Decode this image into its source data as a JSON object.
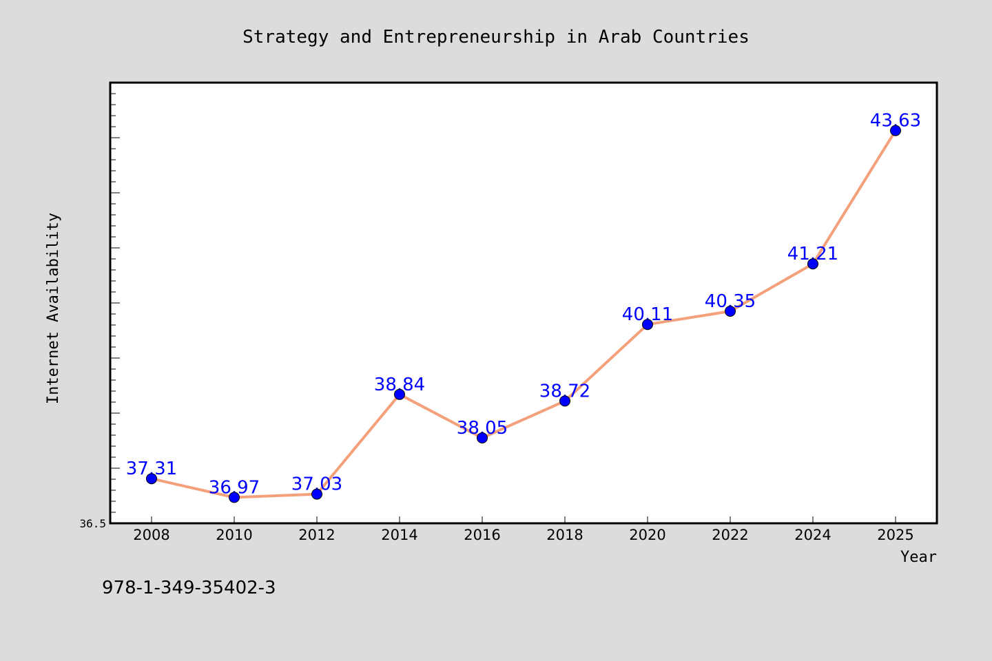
{
  "chart_data": {
    "type": "line",
    "title": "Strategy and Entrepreneurship in Arab Countries",
    "xlabel": "Year",
    "ylabel": "Internet Availability",
    "x": [
      "2008",
      "2010",
      "2012",
      "2014",
      "2016",
      "2018",
      "2020",
      "2022",
      "2024",
      "2025"
    ],
    "series": [
      {
        "values": [
          37.31,
          36.97,
          37.03,
          38.84,
          38.05,
          38.72,
          40.11,
          40.35,
          41.21,
          43.63
        ]
      }
    ],
    "data_labels": [
      "37.31",
      "36.97",
      "37.03",
      "38.84",
      "38.05",
      "38.72",
      "40.11",
      "40.35",
      "41.21",
      "43.63"
    ],
    "ylim": [
      36.5,
      44.5
    ],
    "y_tick_labels": [
      "36.5"
    ],
    "grid": false,
    "legend": "none",
    "colors": {
      "line": "#f4a07a",
      "marker": "#0000ff",
      "data_label": "#0000ff",
      "plot_background": "#ffffff",
      "page_background": "#dcdcdc"
    }
  },
  "footnote": "978-1-349-35402-3"
}
